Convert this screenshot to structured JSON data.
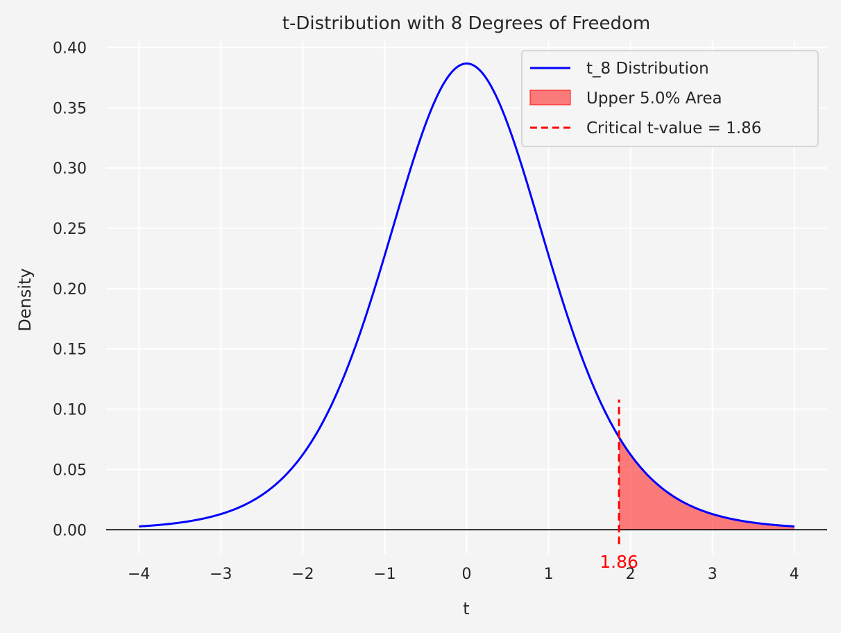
{
  "chart_data": {
    "type": "line",
    "title": "t-Distribution with 8 Degrees of Freedom",
    "xlabel": "t",
    "ylabel": "Density",
    "df": 8,
    "xlim": [
      -4.4,
      4.4
    ],
    "ylim": [
      -0.02,
      0.406
    ],
    "grid": true,
    "legend_position": "top-right",
    "x_ticks": [
      -4,
      -3,
      -2,
      -1,
      0,
      1,
      2,
      3,
      4
    ],
    "x_tick_labels": [
      "−4",
      "−3",
      "−2",
      "−1",
      "0",
      "1",
      "2",
      "3",
      "4"
    ],
    "y_ticks": [
      0.0,
      0.05,
      0.1,
      0.15,
      0.2,
      0.25,
      0.3,
      0.35,
      0.4
    ],
    "y_tick_labels": [
      "0.00",
      "0.05",
      "0.10",
      "0.15",
      "0.20",
      "0.25",
      "0.30",
      "0.35",
      "0.40"
    ],
    "series": [
      {
        "name": "t_8 Distribution",
        "color": "#0000ff",
        "x": [
          -4.0,
          -3.5,
          -3.0,
          -2.5,
          -2.0,
          -1.5,
          -1.0,
          -0.5,
          0.0,
          0.5,
          1.0,
          1.5,
          2.0,
          2.5,
          3.0,
          3.5,
          4.0
        ],
        "y": [
          0.0033,
          0.0062,
          0.0127,
          0.0276,
          0.0604,
          0.1241,
          0.2276,
          0.3458,
          0.3867,
          0.3458,
          0.2276,
          0.1241,
          0.0604,
          0.0276,
          0.0127,
          0.0062,
          0.0033
        ]
      }
    ],
    "shaded_area": {
      "name": "Upper 5.0% Area",
      "from": 1.86,
      "to": 4.0,
      "color": "#ff0000",
      "opacity": 0.5
    },
    "critical_line": {
      "name": "Critical t-value = 1.86",
      "x": 1.86,
      "y_range": [
        -0.012,
        0.108
      ],
      "color": "#ff0000",
      "dash": true
    },
    "annotation": {
      "text": "1.86",
      "x": 1.86,
      "color": "#ff0000"
    },
    "baseline": {
      "y": 0,
      "color": "#000000"
    }
  }
}
